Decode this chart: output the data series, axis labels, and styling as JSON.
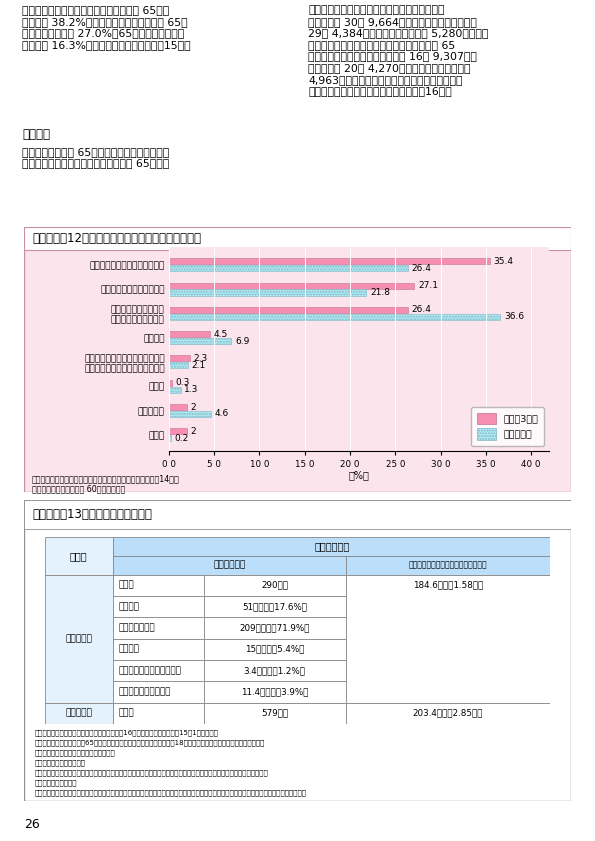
{
  "page_num": "26",
  "left_para": "　また、生活保護を受けている者のうち 65歳以\n上の者は 38.2%を占めているが、その中で 65歳\n以上の単身世帯が 27.0%、65歳以上の女性の単\n身世帯は 16.3%を占めている（表１－２－15）。",
  "right_para": "である勤労者世帯の可処分所得は一世帯当たり\n１か月平均 30万 9,664円で、そのうち消費支出は\n29万 4,384円となっており、１万 5,280円の黒字\nとなっている。これに対し、世帯主の年齢が 65\n歳以上の無職世帯の可処分所得は 16万 9,307円、\n消費支出は 20万 4,270円であることから、３万\n4,963円の赤字を生じており、不足分は貯蓄の取\nり崩しなどで賄われている（表１－２－16）。",
  "section_label": "ウ　消費",
  "section_body": "　世帯主の年齢が 65歳以上である世帯の家計の\n状況についてみると、世帯主の年齢が 65歳以上",
  "fig_box_title": "図１－２－12",
  "fig_box_subtitle": "高齢期の生活費不足分の対応方法",
  "fig_bg": "#fce4ec",
  "fig_border": "#c8909a",
  "bar_cats": [
    "生活費を節約して間に合わせる",
    "貯蓄を取り崩してまかなう",
    "子どもと同居したり、\n子どもに助けてもらう",
    "財産収入",
    "自宅などの不動産を処分したり、\n担保にして借りたりしてまかなう",
    "その他",
    "わからない",
    "無回答"
  ],
  "h13": [
    35.4,
    27.1,
    26.4,
    4.5,
    2.3,
    0.3,
    2.0,
    2.0
  ],
  "h7": [
    26.4,
    21.8,
    36.6,
    6.9,
    2.1,
    1.3,
    4.6,
    0.2
  ],
  "color_h13": "#f48fb1",
  "color_h7": "#b2ebf2",
  "legend_h13": "平成１3年度",
  "legend_h7": "平成７年度",
  "x_tick_labels": [
    "0 0",
    "5 0",
    "10 0",
    "15 0",
    "20 0",
    "25 0",
    "30 0",
    "35 0",
    "40 0"
  ],
  "x_tick_vals": [
    0,
    5,
    10,
    15,
    20,
    25,
    30,
    35,
    40
  ],
  "x_unit": "（%）",
  "fig_source1": "資料：内閣府「高齢者の経済生活に関する意向調査」（平成14年）",
  "fig_source2": "（注）調査対象は、全国 60歳以上の男女",
  "tbl_box_title": "表１－２－13",
  "tbl_box_subtitle": "高齢者世帯の所得",
  "tbl_bg": "#e3f2fd",
  "tbl_header_bg": "#bbdefb",
  "tbl_rows": [
    [
      "高齢者世帯",
      "総所得",
      "290万円",
      "184.6万円（1.58人）"
    ],
    [
      "",
      "稼働所得",
      "51万円　（17.6%）",
      ""
    ],
    [
      "",
      "公的年金・恩給",
      "209万円　（71.9%）",
      ""
    ],
    [
      "",
      "財産所得",
      "15万円　（5.4%）",
      ""
    ],
    [
      "",
      "年金以外の社会保障給付金",
      "3.4万円　（1.2%）",
      ""
    ],
    [
      "",
      "仕送り・その他の所得",
      "11.4万円　（3.9%）",
      ""
    ],
    [
      "全　世　帯",
      "総所得",
      "579万円",
      "203.4万円（2.85人）"
    ]
  ],
  "tbl_src_lines": [
    "資料：厚生労働省「国民生活基礎調査」（平成16年）同調査における平成15年1年間の所得",
    "（注１）高齢者世帯とは、65歳以上の者のみで構成するか、又はこれに18歳未満の未婚の者が加わった世帯をいう。",
    "（注２）財産所得とは以下のものをいう。",
    "　　ア　家賃・地代の所得",
    "　　　　世帯員の所有する土地・家屋を貸すことによって生じた収入（現物給付を含む。）から必要経費を差し引いた金額",
    "　　イ　利子・配当金",
    "　　　　世帯員の所有する預貯金、公社債、株式などによって生じた利子・配当金から必要経費を差し引いた金額（源泉分離課税分を含む。）"
  ]
}
